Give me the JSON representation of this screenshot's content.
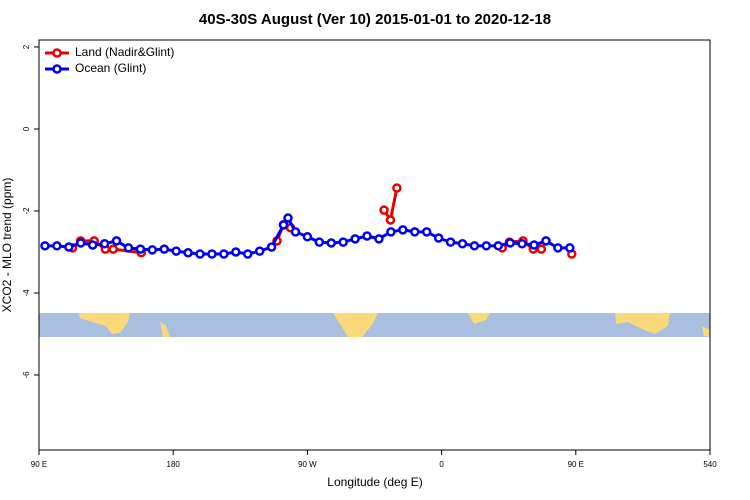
{
  "chart_data": {
    "type": "line",
    "title": "40S-30S August (Ver 10)   2015-01-01 to 2020-12-18",
    "x_label": "Longitude (deg E)",
    "y_label": "XCO2 - MLO trend (ppm)",
    "xlim": [
      90,
      540
    ],
    "xticks": [
      {
        "value": 90,
        "label": "90 E"
      },
      180,
      {
        "value": 270,
        "label": "90 W"
      },
      {
        "value": 360,
        "label": "0"
      },
      {
        "value": 450,
        "label": "90 E"
      },
      540
    ],
    "ylim": [
      -7.83,
      2.17
    ],
    "yticks": [
      2,
      0,
      -2,
      -4,
      -6
    ],
    "grid": false,
    "legend": "top-left",
    "series": [
      {
        "name": "Land (Nadir&Glint)",
        "color": "#e60000",
        "x": [
          112.5,
          117.9,
          127,
          134.5,
          139.8,
          158.6,
          null,
          249.6,
          253.9,
          258.7,
          null,
          321.4,
          325.7,
          330,
          null,
          400.7,
          405.5,
          414.6,
          421.5,
          426.9,
          null,
          447.3
        ],
        "values": [
          -2.9,
          -2.73,
          -2.73,
          -2.93,
          -2.93,
          -3.02,
          null,
          -2.73,
          -2.34,
          -2.41,
          null,
          -1.98,
          -2.22,
          -1.44,
          null,
          -2.9,
          -2.76,
          -2.73,
          -2.93,
          -2.93,
          null,
          -3.05
        ]
      },
      {
        "name": "Ocean (Glint)",
        "color": "#0000ee",
        "x": [
          94,
          102,
          110,
          118,
          126,
          134,
          142,
          150,
          158,
          166,
          174,
          182,
          190,
          198,
          206,
          214,
          222,
          230,
          238,
          246,
          254,
          257,
          262,
          270,
          278,
          286,
          294,
          302,
          310,
          318,
          326,
          334,
          342,
          350,
          358,
          366,
          374,
          382,
          390,
          398,
          406,
          414,
          422,
          430,
          438,
          446
        ],
        "values": [
          -2.85,
          -2.85,
          -2.88,
          -2.78,
          -2.83,
          -2.8,
          -2.73,
          -2.9,
          -2.93,
          -2.95,
          -2.93,
          -2.98,
          -3.02,
          -3.05,
          -3.05,
          -3.05,
          -3.0,
          -3.05,
          -2.98,
          -2.88,
          -2.34,
          -2.17,
          -2.51,
          -2.63,
          -2.76,
          -2.78,
          -2.76,
          -2.68,
          -2.61,
          -2.68,
          -2.51,
          -2.46,
          -2.51,
          -2.51,
          -2.66,
          -2.76,
          -2.8,
          -2.85,
          -2.85,
          -2.85,
          -2.78,
          -2.8,
          -2.83,
          -2.73,
          -2.9,
          -2.9
        ]
      }
    ]
  }
}
